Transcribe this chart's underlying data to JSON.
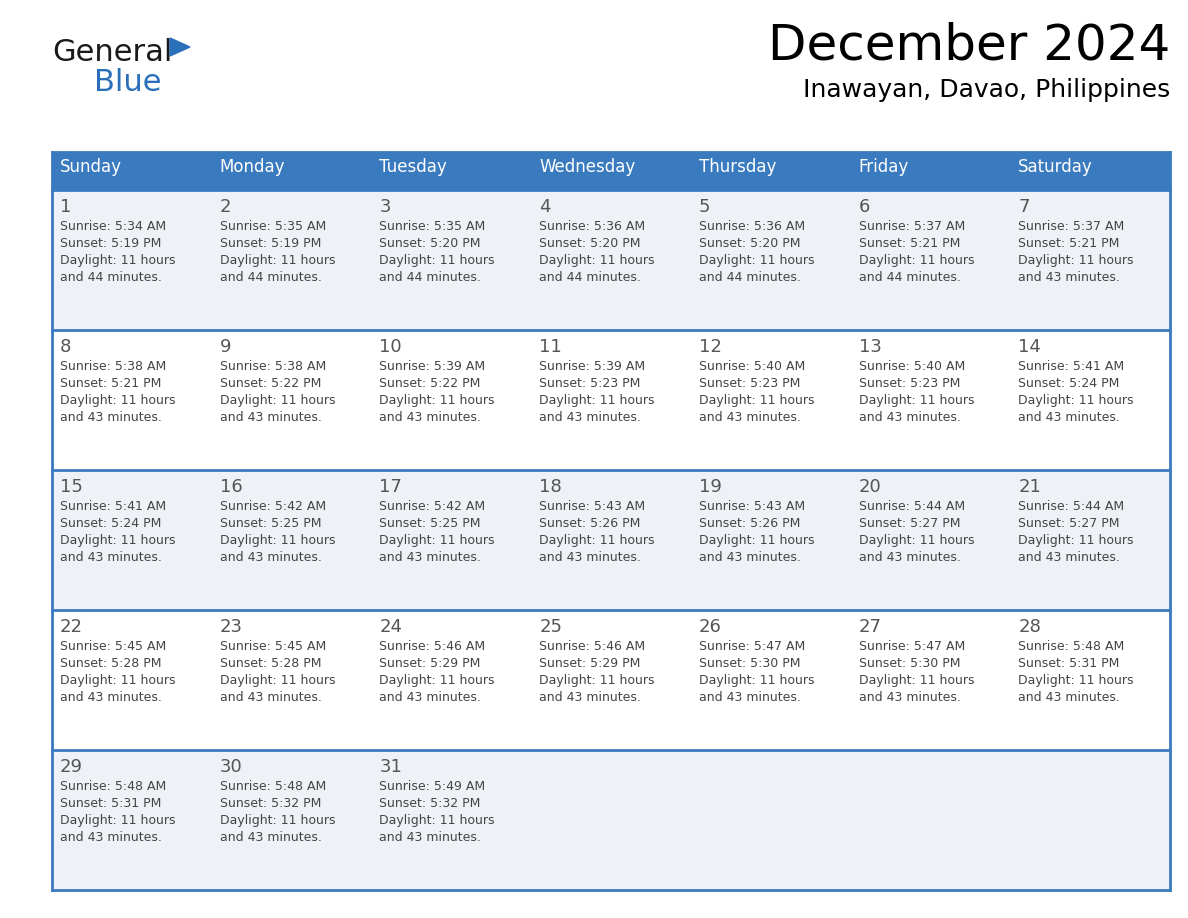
{
  "title": "December 2024",
  "subtitle": "Inawayan, Davao, Philippines",
  "header_bg": "#3a7bbf",
  "header_text": "#ffffff",
  "cell_bg_light": "#eef2f7",
  "cell_bg_white": "#ffffff",
  "row_separator": "#3a7bbf",
  "days_of_week": [
    "Sunday",
    "Monday",
    "Tuesday",
    "Wednesday",
    "Thursday",
    "Friday",
    "Saturday"
  ],
  "calendar": [
    [
      {
        "day": 1,
        "sunrise": "5:34 AM",
        "sunset": "5:19 PM",
        "daylight": "11 hours and 44 minutes."
      },
      {
        "day": 2,
        "sunrise": "5:35 AM",
        "sunset": "5:19 PM",
        "daylight": "11 hours and 44 minutes."
      },
      {
        "day": 3,
        "sunrise": "5:35 AM",
        "sunset": "5:20 PM",
        "daylight": "11 hours and 44 minutes."
      },
      {
        "day": 4,
        "sunrise": "5:36 AM",
        "sunset": "5:20 PM",
        "daylight": "11 hours and 44 minutes."
      },
      {
        "day": 5,
        "sunrise": "5:36 AM",
        "sunset": "5:20 PM",
        "daylight": "11 hours and 44 minutes."
      },
      {
        "day": 6,
        "sunrise": "5:37 AM",
        "sunset": "5:21 PM",
        "daylight": "11 hours and 44 minutes."
      },
      {
        "day": 7,
        "sunrise": "5:37 AM",
        "sunset": "5:21 PM",
        "daylight": "11 hours and 43 minutes."
      }
    ],
    [
      {
        "day": 8,
        "sunrise": "5:38 AM",
        "sunset": "5:21 PM",
        "daylight": "11 hours and 43 minutes."
      },
      {
        "day": 9,
        "sunrise": "5:38 AM",
        "sunset": "5:22 PM",
        "daylight": "11 hours and 43 minutes."
      },
      {
        "day": 10,
        "sunrise": "5:39 AM",
        "sunset": "5:22 PM",
        "daylight": "11 hours and 43 minutes."
      },
      {
        "day": 11,
        "sunrise": "5:39 AM",
        "sunset": "5:23 PM",
        "daylight": "11 hours and 43 minutes."
      },
      {
        "day": 12,
        "sunrise": "5:40 AM",
        "sunset": "5:23 PM",
        "daylight": "11 hours and 43 minutes."
      },
      {
        "day": 13,
        "sunrise": "5:40 AM",
        "sunset": "5:23 PM",
        "daylight": "11 hours and 43 minutes."
      },
      {
        "day": 14,
        "sunrise": "5:41 AM",
        "sunset": "5:24 PM",
        "daylight": "11 hours and 43 minutes."
      }
    ],
    [
      {
        "day": 15,
        "sunrise": "5:41 AM",
        "sunset": "5:24 PM",
        "daylight": "11 hours and 43 minutes."
      },
      {
        "day": 16,
        "sunrise": "5:42 AM",
        "sunset": "5:25 PM",
        "daylight": "11 hours and 43 minutes."
      },
      {
        "day": 17,
        "sunrise": "5:42 AM",
        "sunset": "5:25 PM",
        "daylight": "11 hours and 43 minutes."
      },
      {
        "day": 18,
        "sunrise": "5:43 AM",
        "sunset": "5:26 PM",
        "daylight": "11 hours and 43 minutes."
      },
      {
        "day": 19,
        "sunrise": "5:43 AM",
        "sunset": "5:26 PM",
        "daylight": "11 hours and 43 minutes."
      },
      {
        "day": 20,
        "sunrise": "5:44 AM",
        "sunset": "5:27 PM",
        "daylight": "11 hours and 43 minutes."
      },
      {
        "day": 21,
        "sunrise": "5:44 AM",
        "sunset": "5:27 PM",
        "daylight": "11 hours and 43 minutes."
      }
    ],
    [
      {
        "day": 22,
        "sunrise": "5:45 AM",
        "sunset": "5:28 PM",
        "daylight": "11 hours and 43 minutes."
      },
      {
        "day": 23,
        "sunrise": "5:45 AM",
        "sunset": "5:28 PM",
        "daylight": "11 hours and 43 minutes."
      },
      {
        "day": 24,
        "sunrise": "5:46 AM",
        "sunset": "5:29 PM",
        "daylight": "11 hours and 43 minutes."
      },
      {
        "day": 25,
        "sunrise": "5:46 AM",
        "sunset": "5:29 PM",
        "daylight": "11 hours and 43 minutes."
      },
      {
        "day": 26,
        "sunrise": "5:47 AM",
        "sunset": "5:30 PM",
        "daylight": "11 hours and 43 minutes."
      },
      {
        "day": 27,
        "sunrise": "5:47 AM",
        "sunset": "5:30 PM",
        "daylight": "11 hours and 43 minutes."
      },
      {
        "day": 28,
        "sunrise": "5:48 AM",
        "sunset": "5:31 PM",
        "daylight": "11 hours and 43 minutes."
      }
    ],
    [
      {
        "day": 29,
        "sunrise": "5:48 AM",
        "sunset": "5:31 PM",
        "daylight": "11 hours and 43 minutes."
      },
      {
        "day": 30,
        "sunrise": "5:48 AM",
        "sunset": "5:32 PM",
        "daylight": "11 hours and 43 minutes."
      },
      {
        "day": 31,
        "sunrise": "5:49 AM",
        "sunset": "5:32 PM",
        "daylight": "11 hours and 43 minutes."
      },
      null,
      null,
      null,
      null
    ]
  ],
  "logo_general_color": "#1a1a1a",
  "logo_blue_color": "#2a6fba",
  "logo_triangle_color": "#2a6fba",
  "text_color": "#444444",
  "day_num_color": "#555555"
}
